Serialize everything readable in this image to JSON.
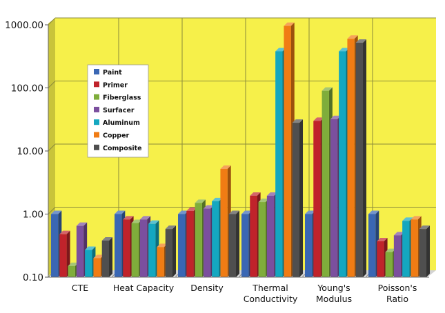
{
  "chart_data": {
    "type": "bar",
    "scale": "log",
    "title": "",
    "xlabel": "",
    "ylabel": "",
    "ylim": [
      0.1,
      1000
    ],
    "yticks": [
      "0.10",
      "1.00",
      "10.00",
      "100.00",
      "1000.00"
    ],
    "categories": [
      [
        "CTE"
      ],
      [
        "Heat Capacity"
      ],
      [
        "Density"
      ],
      [
        "Thermal",
        "Conductivity"
      ],
      [
        "Young's",
        "Modulus"
      ],
      [
        "Poisson's",
        "Ratio"
      ]
    ],
    "series": [
      {
        "name": "Paint",
        "color": "#3a67b4",
        "values": [
          1.0,
          1.0,
          1.0,
          1.0,
          1.0,
          1.0
        ]
      },
      {
        "name": "Primer",
        "color": "#c0232b",
        "values": [
          0.48,
          0.82,
          1.12,
          1.95,
          30.0,
          0.37
        ]
      },
      {
        "name": "Fiberglass",
        "color": "#7fad3b",
        "values": [
          0.15,
          0.72,
          1.5,
          1.55,
          90.0,
          0.25
        ]
      },
      {
        "name": "Surfacer",
        "color": "#7b4f9e",
        "values": [
          0.65,
          0.82,
          1.22,
          1.95,
          32.0,
          0.46
        ]
      },
      {
        "name": "Aluminum",
        "color": "#14a7c0",
        "values": [
          0.27,
          0.7,
          1.6,
          380.0,
          380.0,
          0.78
        ]
      },
      {
        "name": "Copper",
        "color": "#f07c14",
        "values": [
          0.2,
          0.3,
          5.2,
          960.0,
          600.0,
          0.82
        ]
      },
      {
        "name": "Composite",
        "color": "#4f4f4f",
        "values": [
          0.38,
          0.58,
          1.0,
          28.0,
          520.0,
          0.58
        ]
      }
    ],
    "legend_position": "upper-left-inside",
    "grid": true,
    "background": "#f6f04a"
  }
}
